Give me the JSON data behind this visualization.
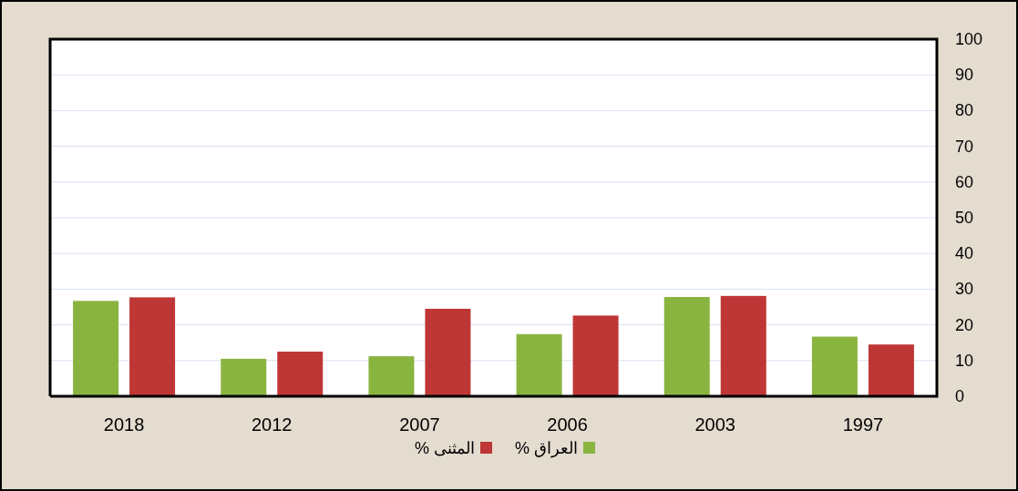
{
  "chart_data": {
    "type": "bar",
    "categories": [
      "2018",
      "2012",
      "2007",
      "2006",
      "2003",
      "1997"
    ],
    "series": [
      {
        "name": "العراق %",
        "color": "#8ab440",
        "values": [
          26.7,
          10.5,
          11.2,
          17.4,
          27.8,
          16.7
        ]
      },
      {
        "name": "المثنى %",
        "color": "#bf3636",
        "values": [
          27.7,
          12.5,
          24.5,
          22.6,
          28.1,
          14.5
        ]
      }
    ],
    "ylim": [
      0,
      100
    ],
    "yticks": [
      0,
      10,
      20,
      30,
      40,
      50,
      60,
      70,
      80,
      90,
      100
    ],
    "grid": "y",
    "legend": "bottom"
  }
}
